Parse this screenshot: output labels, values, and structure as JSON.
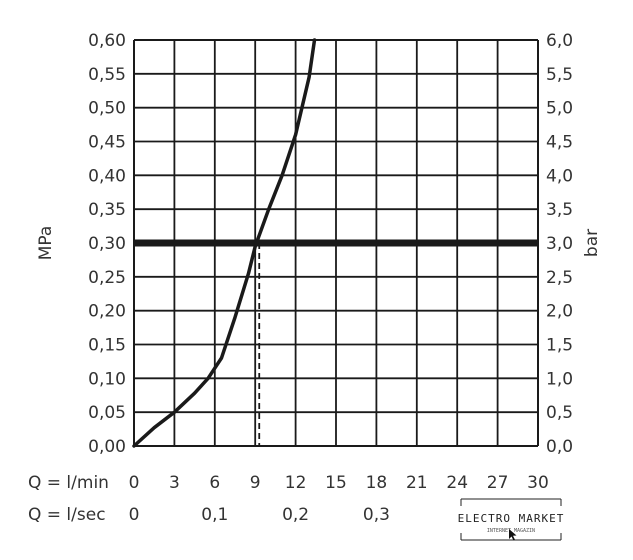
{
  "chart_data": {
    "type": "line",
    "xlabel_primary": "Q = l/min",
    "xlabel_secondary": "Q = l/sec",
    "ylabel_left": "MPa",
    "ylabel_right": "bar",
    "xlim": [
      0,
      30
    ],
    "ylim": [
      0,
      0.6
    ],
    "x_ticks": [
      "0",
      "3",
      "6",
      "9",
      "12",
      "15",
      "18",
      "21",
      "24",
      "27",
      "30"
    ],
    "x_ticks_secondary": [
      {
        "label": "0",
        "value": 0
      },
      {
        "label": "0,1",
        "value": 0.1
      },
      {
        "label": "0,2",
        "value": 0.2
      },
      {
        "label": "0,3",
        "value": 0.3
      }
    ],
    "y_ticks_left": [
      "0,00",
      "0,05",
      "0,10",
      "0,15",
      "0,20",
      "0,25",
      "0,30",
      "0,35",
      "0,40",
      "0,45",
      "0,50",
      "0,55",
      "0,60"
    ],
    "y_ticks_right": [
      "0,0",
      "0,5",
      "1,0",
      "1,5",
      "2,0",
      "2,5",
      "3,0",
      "3,5",
      "4,0",
      "4,5",
      "5,0",
      "5,5",
      "6,0"
    ],
    "grid": true,
    "series": [
      {
        "x": [
          0,
          1.5,
          3,
          4.5,
          5.5,
          6.5,
          7.5,
          8.5,
          9.0,
          10.0,
          11.0,
          12.0,
          13.0,
          13.4
        ],
        "y": [
          0,
          0.027,
          0.05,
          0.078,
          0.1,
          0.13,
          0.19,
          0.255,
          0.295,
          0.35,
          0.4,
          0.46,
          0.545,
          0.6
        ]
      }
    ],
    "reference_line_y": 0.3,
    "reference_marker_x": 9.3
  },
  "watermark": {
    "text": "ELECTRO MARKET",
    "subtext": "INTERNET MAGAZIN"
  }
}
